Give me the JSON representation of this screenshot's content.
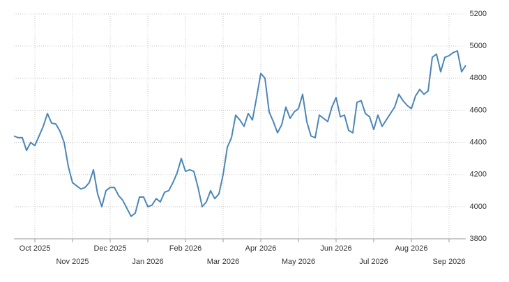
{
  "chart_data": {
    "type": "line",
    "categories": [
      null,
      null,
      null,
      null,
      null,
      "Oct 2025",
      null,
      null,
      null,
      null,
      null,
      null,
      null,
      null,
      "Nov 2025",
      null,
      null,
      null,
      null,
      null,
      null,
      null,
      null,
      "Dec 2025",
      null,
      null,
      null,
      null,
      null,
      null,
      null,
      null,
      "Jan 2026",
      null,
      null,
      null,
      null,
      null,
      null,
      null,
      null,
      "Feb 2026",
      null,
      null,
      null,
      null,
      null,
      null,
      null,
      null,
      "Mar 2026",
      null,
      null,
      null,
      null,
      null,
      null,
      null,
      null,
      "Apr 2026",
      null,
      null,
      null,
      null,
      null,
      null,
      null,
      null,
      "May 2026",
      null,
      null,
      null,
      null,
      null,
      null,
      null,
      null,
      "Jun 2026",
      null,
      null,
      null,
      null,
      null,
      null,
      null,
      null,
      "Jul 2026",
      null,
      null,
      null,
      null,
      null,
      null,
      null,
      null,
      "Aug 2026",
      null,
      null,
      null,
      null,
      null,
      null,
      null,
      null,
      "Sep 2026",
      null,
      null,
      null,
      null
    ],
    "values": [
      4440,
      4430,
      4430,
      4350,
      4400,
      4380,
      4440,
      4500,
      4580,
      4520,
      4515,
      4470,
      4400,
      4250,
      4150,
      4130,
      4110,
      4120,
      4150,
      4230,
      4080,
      4000,
      4100,
      4120,
      4120,
      4070,
      4040,
      3990,
      3940,
      3960,
      4060,
      4060,
      4000,
      4010,
      4050,
      4030,
      4090,
      4100,
      4150,
      4210,
      4300,
      4220,
      4230,
      4220,
      4120,
      4000,
      4030,
      4100,
      4050,
      4080,
      4200,
      4370,
      4430,
      4570,
      4540,
      4500,
      4580,
      4540,
      4680,
      4830,
      4800,
      4590,
      4530,
      4460,
      4510,
      4620,
      4550,
      4590,
      4610,
      4700,
      4530,
      4440,
      4430,
      4570,
      4550,
      4530,
      4620,
      4680,
      4560,
      4570,
      4475,
      4460,
      4650,
      4660,
      4580,
      4560,
      4480,
      4570,
      4500,
      4540,
      4580,
      4620,
      4700,
      4660,
      4630,
      4610,
      4690,
      4730,
      4700,
      4720,
      4930,
      4950,
      4840,
      4930,
      4940,
      4960,
      4970,
      4840,
      4880
    ],
    "color": "#4a86b8",
    "ylim": [
      3800,
      5200
    ],
    "yticks": [
      3800,
      4000,
      4200,
      4400,
      4600,
      4800,
      5000,
      5200
    ],
    "grid": true
  }
}
